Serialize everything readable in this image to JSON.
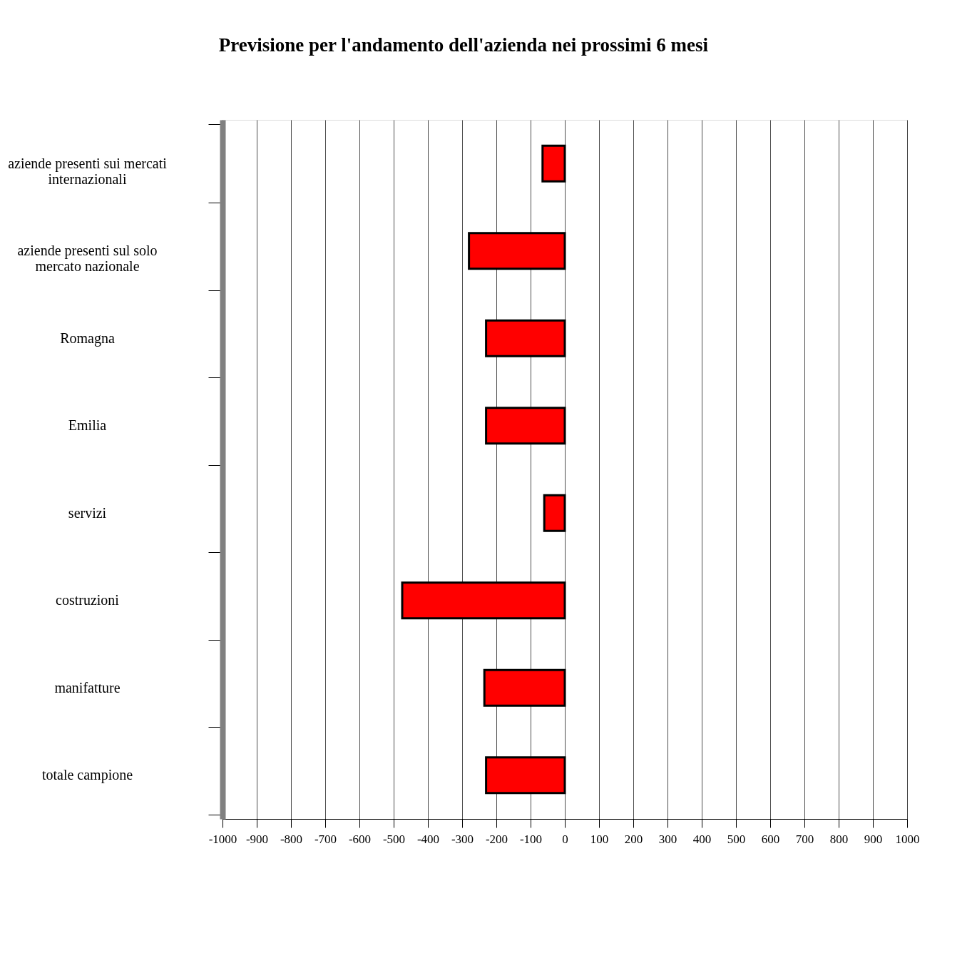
{
  "chart_data": {
    "type": "bar",
    "orientation": "horizontal",
    "title": "Previsione per l'andamento dell'azienda nei prossimi 6 mesi",
    "categories": [
      "aziende presenti sui mercati internazionali",
      "aziende presenti sul solo mercato nazionale",
      "Romagna",
      "Emilia",
      "servizi",
      "costruzioni",
      "manifatture",
      "totale campione"
    ],
    "values": [
      -65,
      -280,
      -230,
      -230,
      -60,
      -475,
      -235,
      -230
    ],
    "color": "#ff0000",
    "xlim": [
      -1000,
      1000
    ],
    "xticks": [
      -1000,
      -900,
      -800,
      -700,
      -600,
      -500,
      -400,
      -300,
      -200,
      -100,
      0,
      100,
      200,
      300,
      400,
      500,
      600,
      700,
      800,
      900,
      1000
    ],
    "grid": "x"
  }
}
